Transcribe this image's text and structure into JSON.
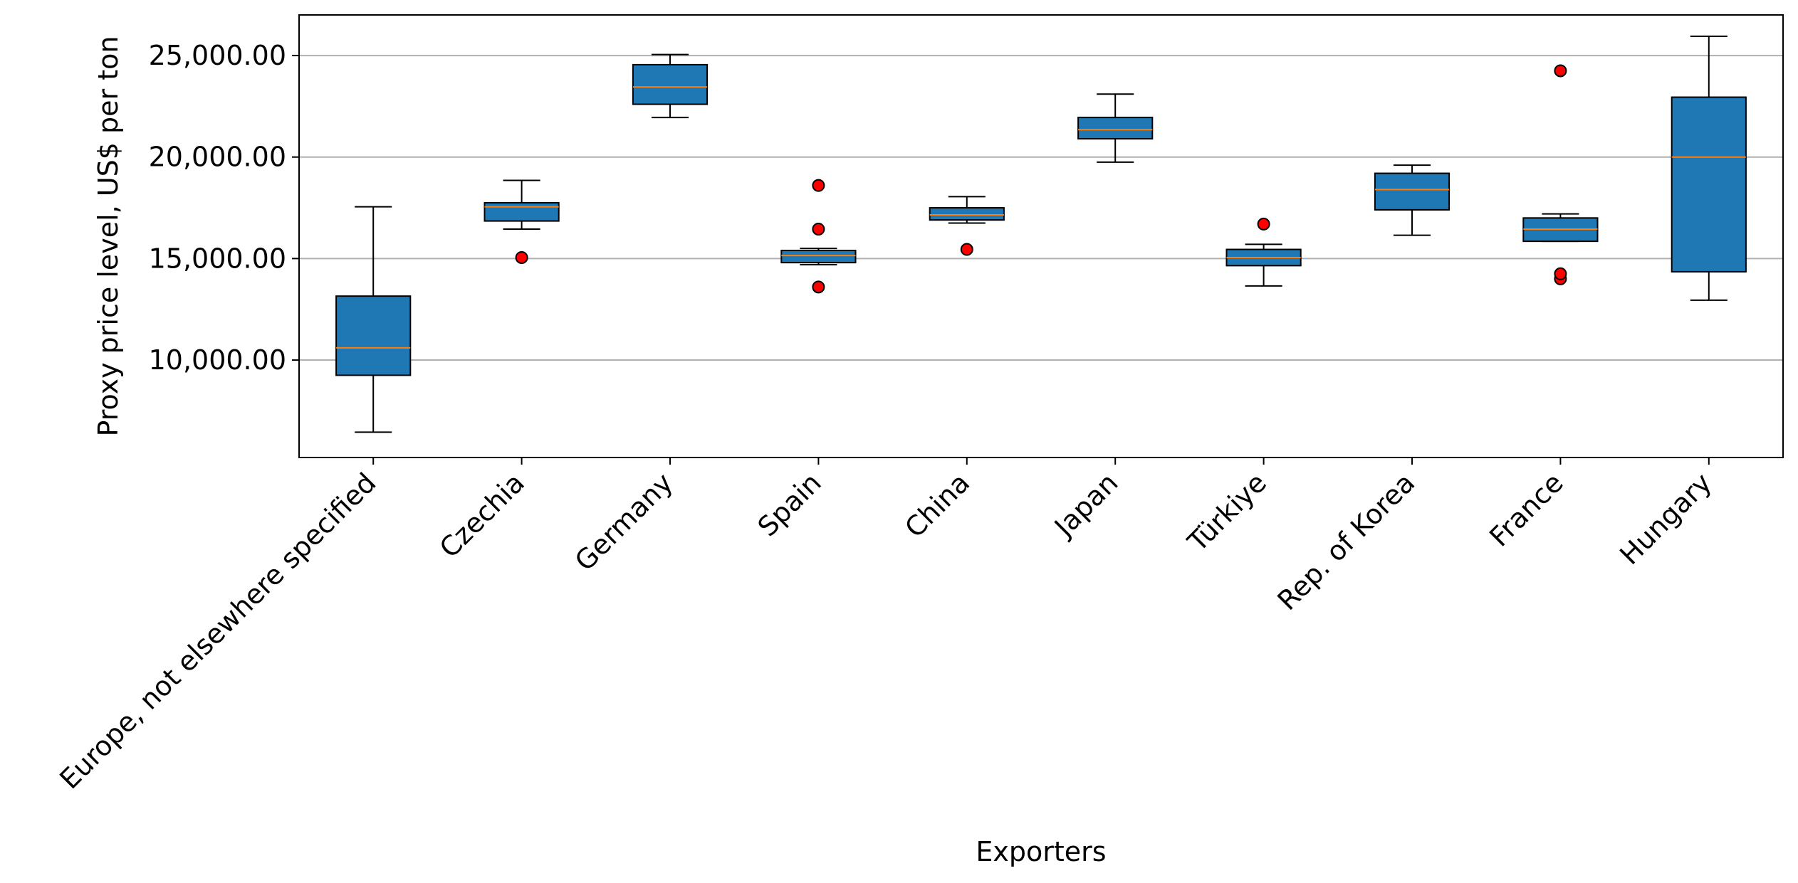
{
  "chart_data": {
    "type": "box",
    "title": "",
    "xlabel": "Exporters",
    "ylabel": "Proxy price level, US$ per ton",
    "ylim": [
      5200,
      27000
    ],
    "yticks": [
      10000,
      15000,
      20000,
      25000
    ],
    "ytick_labels": [
      "10,000.00",
      "15,000.00",
      "20,000.00",
      "25,000.00"
    ],
    "grid": "y",
    "categories": [
      "Europe, not elsewhere specified",
      "Czechia",
      "Germany",
      "Spain",
      "China",
      "Japan",
      "Türkiye",
      "Rep. of Korea",
      "France",
      "Hungary"
    ],
    "boxes": [
      {
        "whislo": 6450,
        "q1": 9250,
        "med": 10600,
        "q3": 13150,
        "whishi": 17550,
        "fliers": []
      },
      {
        "whislo": 16450,
        "q1": 16850,
        "med": 17550,
        "q3": 17750,
        "whishi": 18850,
        "fliers": [
          15050
        ]
      },
      {
        "whislo": 21950,
        "q1": 22600,
        "med": 23450,
        "q3": 24550,
        "whishi": 25050,
        "fliers": []
      },
      {
        "whislo": 14700,
        "q1": 14800,
        "med": 15150,
        "q3": 15400,
        "whishi": 15500,
        "fliers": [
          13600,
          16450,
          18600
        ]
      },
      {
        "whislo": 16750,
        "q1": 16900,
        "med": 17150,
        "q3": 17500,
        "whishi": 18050,
        "fliers": [
          15450
        ]
      },
      {
        "whislo": 19750,
        "q1": 20900,
        "med": 21350,
        "q3": 21950,
        "whishi": 23100,
        "fliers": []
      },
      {
        "whislo": 13650,
        "q1": 14650,
        "med": 15050,
        "q3": 15450,
        "whishi": 15700,
        "fliers": [
          16700
        ]
      },
      {
        "whislo": 16150,
        "q1": 17400,
        "med": 18400,
        "q3": 19200,
        "whishi": 19600,
        "fliers": []
      },
      {
        "whislo": 15850,
        "q1": 15850,
        "med": 16450,
        "q3": 17000,
        "whishi": 17200,
        "fliers": [
          14000,
          14250,
          24250
        ]
      },
      {
        "whislo": 12950,
        "q1": 14350,
        "med": 20000,
        "q3": 22950,
        "whishi": 25950,
        "fliers": []
      }
    ],
    "colors": {
      "box_fill": "#1f77b4",
      "median": "#ff7f0e",
      "flier_fill": "#ff0000",
      "grid": "#b0b0b0",
      "edge": "#000000"
    }
  }
}
